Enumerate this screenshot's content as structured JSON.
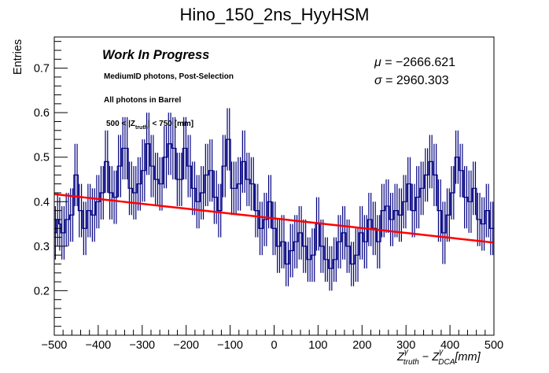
{
  "chart_data": {
    "type": "histogram",
    "title": "Hino_150_2ns_HyyHSM",
    "xlabel": {
      "main": "Z",
      "sup1": "γ",
      "sub1": "truth",
      "minus": " − ",
      "main2": "Z",
      "sup2": "γ",
      "sub2": "DCA",
      "unit": "[mm]"
    },
    "ylabel": "Entries",
    "xlim": [
      -500,
      500
    ],
    "ylim": [
      0.1,
      0.77
    ],
    "x_ticks": [
      -500,
      -400,
      -300,
      -200,
      -100,
      0,
      100,
      200,
      300,
      400,
      500
    ],
    "x_tick_labels": [
      "−500",
      "−400",
      "−300",
      "−200",
      "−100",
      "0",
      "100",
      "200",
      "300",
      "400",
      "500"
    ],
    "y_ticks": [
      0.2,
      0.3,
      0.4,
      0.5,
      0.6,
      0.7
    ],
    "y_tick_labels": [
      "0.2",
      "0.3",
      "0.4",
      "0.5",
      "0.6",
      "0.7"
    ],
    "grid": false,
    "n_bins": 200,
    "bin_width": 5,
    "series": [
      {
        "name": "histogram",
        "color": "#000080",
        "style": "step-with-errorbars",
        "values": [
          0.33,
          0.36,
          0.35,
          0.33,
          0.33,
          0.36,
          0.36,
          0.37,
          0.37,
          0.46,
          0.46,
          0.38,
          0.38,
          0.34,
          0.34,
          0.38,
          0.38,
          0.37,
          0.37,
          0.4,
          0.4,
          0.42,
          0.42,
          0.49,
          0.49,
          0.42,
          0.42,
          0.41,
          0.41,
          0.48,
          0.48,
          0.52,
          0.52,
          0.52,
          0.43,
          0.43,
          0.42,
          0.42,
          0.44,
          0.44,
          0.47,
          0.47,
          0.53,
          0.53,
          0.48,
          0.48,
          0.45,
          0.45,
          0.44,
          0.44,
          0.5,
          0.5,
          0.53,
          0.53,
          0.52,
          0.52,
          0.45,
          0.45,
          0.45,
          0.52,
          0.52,
          0.48,
          0.48,
          0.43,
          0.43,
          0.4,
          0.4,
          0.42,
          0.42,
          0.46,
          0.46,
          0.47,
          0.47,
          0.41,
          0.41,
          0.38,
          0.38,
          0.48,
          0.48,
          0.54,
          0.54,
          0.43,
          0.43,
          0.43,
          0.44,
          0.44,
          0.49,
          0.49,
          0.45,
          0.45,
          0.44,
          0.44,
          0.38,
          0.38,
          0.34,
          0.34,
          0.36,
          0.36,
          0.4,
          0.4,
          0.34,
          0.34,
          0.3,
          0.3,
          0.31,
          0.31,
          0.26,
          0.26,
          0.29,
          0.29,
          0.31,
          0.31,
          0.33,
          0.33,
          0.3,
          0.3,
          0.27,
          0.27,
          0.28,
          0.28,
          0.35,
          0.35,
          0.3,
          0.3,
          0.27,
          0.27,
          0.25,
          0.25,
          0.27,
          0.27,
          0.31,
          0.31,
          0.33,
          0.33,
          0.3,
          0.3,
          0.26,
          0.26,
          0.28,
          0.28,
          0.33,
          0.33,
          0.31,
          0.31,
          0.36,
          0.36,
          0.34,
          0.34,
          0.31,
          0.31,
          0.38,
          0.38,
          0.39,
          0.39,
          0.36,
          0.36,
          0.38,
          0.38,
          0.37,
          0.37,
          0.4,
          0.4,
          0.44,
          0.44,
          0.38,
          0.38,
          0.41,
          0.41,
          0.43,
          0.43,
          0.46,
          0.46,
          0.49,
          0.49,
          0.46,
          0.46,
          0.38,
          0.38,
          0.33,
          0.33,
          0.37,
          0.37,
          0.42,
          0.42,
          0.5,
          0.5,
          0.47,
          0.47,
          0.41,
          0.41,
          0.4,
          0.4,
          0.43,
          0.43,
          0.36,
          0.36,
          0.35,
          0.35,
          0.38,
          0.38,
          0.34,
          0.34
        ],
        "errors": [
          0.06,
          0.06,
          0.06,
          0.06,
          0.06,
          0.06,
          0.06,
          0.06,
          0.06,
          0.07,
          0.07,
          0.06,
          0.06,
          0.06,
          0.06,
          0.06,
          0.06,
          0.06,
          0.06,
          0.06,
          0.06,
          0.06,
          0.06,
          0.07,
          0.07,
          0.06,
          0.06,
          0.06,
          0.06,
          0.07,
          0.07,
          0.07,
          0.07,
          0.07,
          0.06,
          0.06,
          0.06,
          0.06,
          0.06,
          0.06,
          0.07,
          0.07,
          0.07,
          0.07,
          0.07,
          0.07,
          0.06,
          0.06,
          0.06,
          0.06,
          0.07,
          0.07,
          0.07,
          0.07,
          0.07,
          0.07,
          0.06,
          0.06,
          0.06,
          0.07,
          0.07,
          0.07,
          0.07,
          0.06,
          0.06,
          0.06,
          0.06,
          0.06,
          0.06,
          0.07,
          0.07,
          0.07,
          0.07,
          0.06,
          0.06,
          0.06,
          0.06,
          0.07,
          0.07,
          0.07,
          0.07,
          0.06,
          0.06,
          0.06,
          0.06,
          0.06,
          0.07,
          0.07,
          0.06,
          0.06,
          0.06,
          0.06,
          0.06,
          0.06,
          0.06,
          0.06,
          0.06,
          0.06,
          0.06,
          0.06,
          0.06,
          0.06,
          0.06,
          0.06,
          0.06,
          0.06,
          0.05,
          0.05,
          0.06,
          0.06,
          0.06,
          0.06,
          0.06,
          0.06,
          0.06,
          0.06,
          0.05,
          0.05,
          0.06,
          0.06,
          0.06,
          0.06,
          0.06,
          0.06,
          0.05,
          0.05,
          0.05,
          0.05,
          0.05,
          0.05,
          0.06,
          0.06,
          0.06,
          0.06,
          0.06,
          0.06,
          0.05,
          0.05,
          0.06,
          0.06,
          0.06,
          0.06,
          0.06,
          0.06,
          0.06,
          0.06,
          0.06,
          0.06,
          0.06,
          0.06,
          0.06,
          0.06,
          0.06,
          0.06,
          0.06,
          0.06,
          0.06,
          0.06,
          0.06,
          0.06,
          0.06,
          0.06,
          0.06,
          0.06,
          0.06,
          0.06,
          0.07,
          0.07,
          0.06,
          0.06,
          0.06,
          0.06,
          0.06,
          0.06,
          0.07,
          0.07,
          0.07,
          0.07,
          0.07,
          0.07,
          0.06,
          0.06,
          0.06,
          0.06,
          0.06,
          0.06,
          0.06,
          0.06,
          0.07,
          0.07,
          0.07,
          0.07,
          0.06,
          0.06,
          0.06,
          0.06,
          0.06,
          0.06,
          0.06,
          0.06,
          0.06,
          0.06,
          0.06,
          0.06,
          0.06,
          0.06
        ]
      },
      {
        "name": "linear-fit",
        "color": "#ff0000",
        "style": "line",
        "x": [
          -500,
          500
        ],
        "y": [
          0.417,
          0.308
        ]
      }
    ],
    "annotations": {
      "work_in_progress": "Work In Progress",
      "selection": "MediumID photons, Post-Selection",
      "region": "All photons in Barrel",
      "range_pre": "500 < |Z",
      "range_sub": "truth",
      "range_post": "| < 750 [mm]",
      "mu_symbol": "μ",
      "mu_value": " = −2666.621",
      "sigma_symbol": "σ",
      "sigma_value": " = 2960.303"
    },
    "legend": "none"
  }
}
